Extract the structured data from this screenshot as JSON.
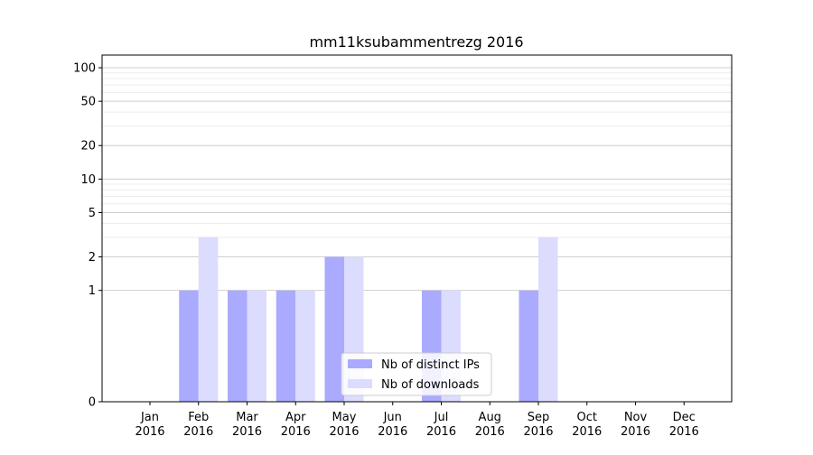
{
  "chart_data": {
    "type": "bar",
    "title": "mm11ksubammentrezg 2016",
    "xlabel": "",
    "ylabel": "",
    "y_scale": "symlog",
    "ylim": [
      0,
      130
    ],
    "y_ticks": [
      0,
      1,
      2,
      5,
      10,
      20,
      50,
      100
    ],
    "grid": true,
    "legend_position": "lower-center",
    "categories": [
      [
        "Jan",
        "2016"
      ],
      [
        "Feb",
        "2016"
      ],
      [
        "Mar",
        "2016"
      ],
      [
        "Apr",
        "2016"
      ],
      [
        "May",
        "2016"
      ],
      [
        "Jun",
        "2016"
      ],
      [
        "Jul",
        "2016"
      ],
      [
        "Aug",
        "2016"
      ],
      [
        "Sep",
        "2016"
      ],
      [
        "Oct",
        "2016"
      ],
      [
        "Nov",
        "2016"
      ],
      [
        "Dec",
        "2016"
      ]
    ],
    "series": [
      {
        "name": "Nb of distinct IPs",
        "color": "#aaaaff",
        "values": [
          0,
          1,
          1,
          1,
          2,
          0,
          1,
          0,
          1,
          0,
          0,
          0
        ]
      },
      {
        "name": "Nb of downloads",
        "color": "#dcdcff",
        "values": [
          0,
          3,
          1,
          1,
          2,
          0,
          1,
          0,
          3,
          0,
          0,
          0
        ]
      }
    ]
  }
}
